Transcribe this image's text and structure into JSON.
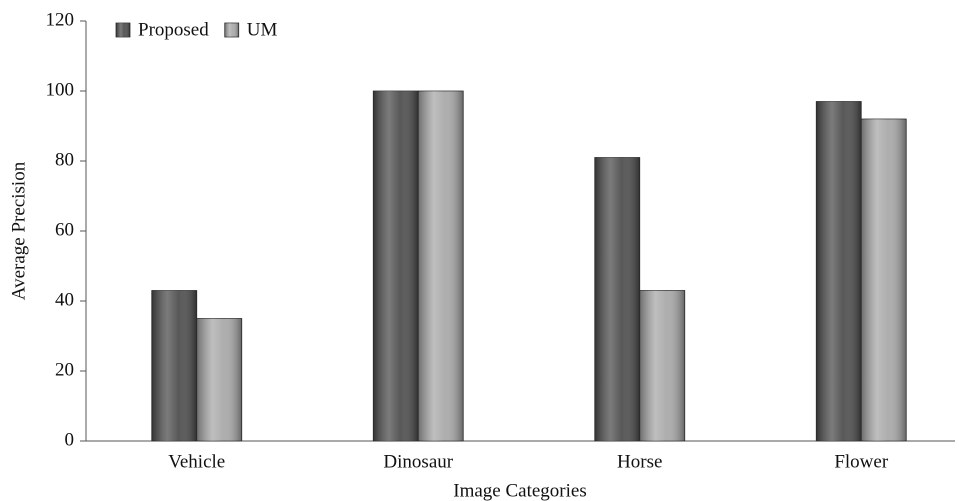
{
  "chart_data": {
    "type": "bar",
    "x_label": "Image Categories",
    "y_label": "Average  Precision",
    "categories": [
      "Vehicle",
      "Dinosaur",
      "Horse",
      "Flower"
    ],
    "series": [
      {
        "name": "Proposed",
        "color": "#4f4f4f",
        "values": [
          43,
          100,
          81,
          97
        ]
      },
      {
        "name": "UM",
        "color": "#a9a9a9",
        "values": [
          35,
          100,
          43,
          92
        ]
      }
    ],
    "ylim": [
      0,
      120
    ],
    "yticks": [
      0,
      20,
      40,
      60,
      80,
      100,
      120
    ],
    "grid": false,
    "legend": "top-left"
  }
}
